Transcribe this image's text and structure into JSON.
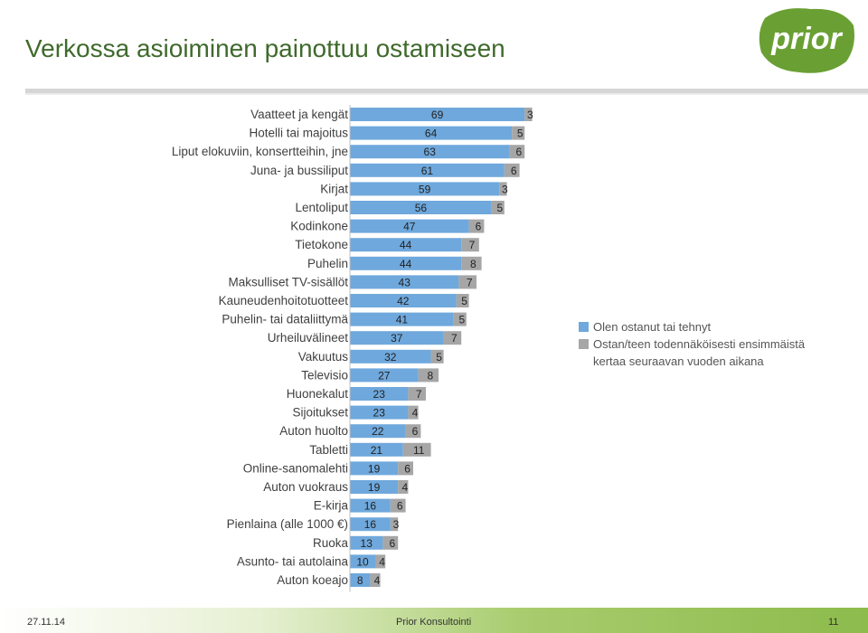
{
  "header": {
    "title": "Verkossa asioiminen painottuu ostamiseen",
    "logo_text": "prior"
  },
  "colors": {
    "series1": "#6fa8dc",
    "series2": "#a6a6a6",
    "title": "#3f6a2c",
    "logo_green": "#6aa033"
  },
  "chart_data": {
    "type": "bar",
    "orientation": "horizontal",
    "stacked": true,
    "categories": [
      "Vaatteet ja kengät",
      "Hotelli tai majoitus",
      "Liput elokuviin, konsertteihin, jne",
      "Juna- ja bussiliput",
      "Kirjat",
      "Lentoliput",
      "Kodinkone",
      "Tietokone",
      "Puhelin",
      "Maksulliset TV-sisällöt",
      "Kauneudenhoitotuotteet",
      "Puhelin- tai dataliittymä",
      "Urheiluvälineet",
      "Vakuutus",
      "Televisio",
      "Huonekalut",
      "Sijoitukset",
      "Auton huolto",
      "Tabletti",
      "Online-sanomalehti",
      "Auton vuokraus",
      "E-kirja",
      "Pienlaina (alle 1000 €)",
      "Ruoka",
      "Asunto- tai autolaina",
      "Auton koeajo"
    ],
    "series": [
      {
        "name": "Olen ostanut tai tehnyt",
        "values": [
          69,
          64,
          63,
          61,
          59,
          56,
          47,
          44,
          44,
          43,
          42,
          41,
          37,
          32,
          27,
          23,
          23,
          22,
          21,
          19,
          19,
          16,
          16,
          13,
          10,
          8
        ]
      },
      {
        "name": "Ostan/teen todennäköisesti ensimmäistä kertaa seuraavan vuoden aikana",
        "values": [
          3,
          5,
          6,
          6,
          3,
          5,
          6,
          7,
          8,
          7,
          5,
          5,
          7,
          5,
          8,
          7,
          4,
          6,
          11,
          6,
          4,
          6,
          3,
          6,
          4,
          4
        ]
      }
    ],
    "legend_position": "right",
    "grid": false,
    "xlim": [
      0,
      72
    ]
  },
  "legend": {
    "item1": "Olen ostanut tai tehnyt",
    "item2_line1": "Ostan/teen todennäköisesti ensimmäistä",
    "item2_line2": "kertaa seuraavan vuoden aikana"
  },
  "footer": {
    "date": "27.11.14",
    "company": "Prior Konsultointi",
    "page": "11"
  }
}
